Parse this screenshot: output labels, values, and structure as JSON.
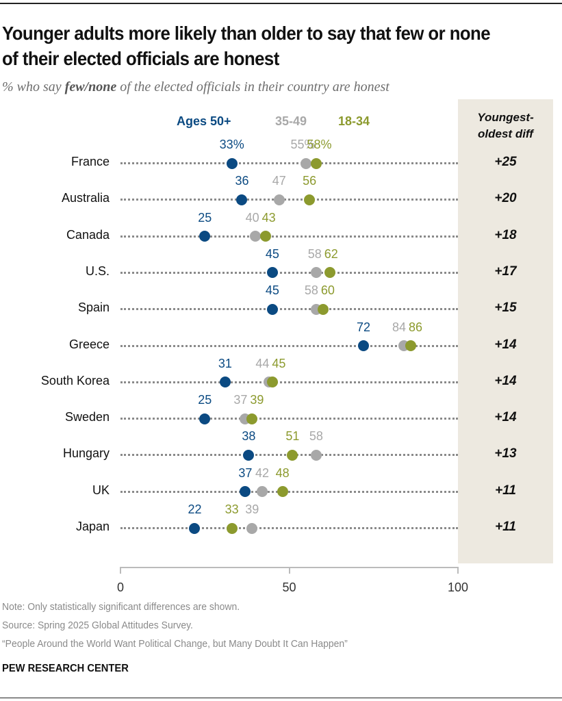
{
  "header": {
    "title": "Younger adults more likely than older to say that few or none of their elected officials are honest",
    "subtitle_pre": "% who say ",
    "subtitle_bold": "few/none",
    "subtitle_post": " of the elected officials in their country are honest"
  },
  "colors": {
    "ages_50_plus": "#0b4a82",
    "ages_35_49": "#a8a8a8",
    "ages_18_34": "#8c9a2e",
    "diff_panel": "#ede9e0"
  },
  "chart_data": {
    "type": "dot-plot",
    "title": "Younger adults more likely than older to say that few or none of their elected officials are honest",
    "subtitle": "% who say few/none of the elected officials in their country are honest",
    "xlabel": "",
    "ylabel": "",
    "xlim": [
      0,
      100
    ],
    "x_ticks": [
      "0",
      "50",
      "100"
    ],
    "grid": false,
    "legend_position": "top",
    "categories": [
      "France",
      "Australia",
      "Canada",
      "U.S.",
      "Spain",
      "Greece",
      "South Korea",
      "Sweden",
      "Hungary",
      "UK",
      "Japan"
    ],
    "series": [
      {
        "name": "Ages 50+",
        "key": "ages_50_plus",
        "values": [
          33,
          36,
          25,
          45,
          45,
          72,
          31,
          25,
          38,
          37,
          22
        ]
      },
      {
        "name": "35-49",
        "key": "ages_35_49",
        "values": [
          55,
          47,
          40,
          58,
          58,
          84,
          44,
          37,
          58,
          42,
          39
        ]
      },
      {
        "name": "18-34",
        "key": "ages_18_34",
        "values": [
          58,
          56,
          43,
          62,
          60,
          86,
          45,
          39,
          51,
          48,
          33
        ]
      }
    ],
    "first_row_percent_suffix": true,
    "diff_column_header": "Youngest-oldest diff",
    "diff_values": [
      "+25",
      "+20",
      "+18",
      "+17",
      "+15",
      "+14",
      "+14",
      "+14",
      "+13",
      "+11",
      "+11"
    ]
  },
  "footer": {
    "note": "Note: Only statistically significant differences are shown.",
    "source": "Source: Spring 2025 Global Attitudes Survey.",
    "report": "“People Around the World Want Political Change, but Many Doubt It Can Happen”",
    "brand": "PEW RESEARCH CENTER"
  }
}
